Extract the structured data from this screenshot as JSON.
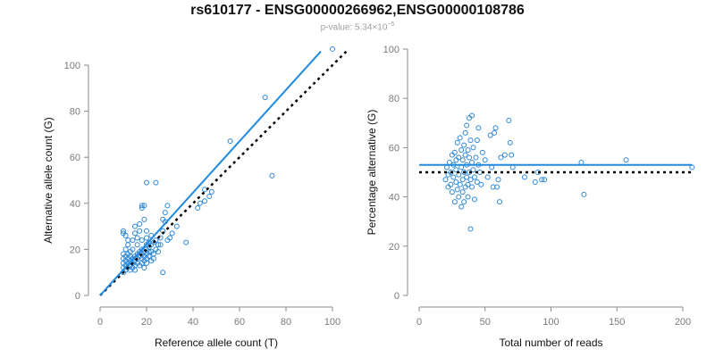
{
  "title": "rs610177 - ENSG00000266962,ENSG00000108786",
  "subtitle": {
    "prefix": "p-value: 5.34×10",
    "exponent": "−5"
  },
  "colors": {
    "points": "#2c87d6",
    "fit_line": "#1f8ae0",
    "reference_line": "#000000",
    "axis": "#8a8a8a",
    "tick_text": "#7a7a7a"
  },
  "chart_data": [
    {
      "type": "scatter",
      "xlabel": "Reference allele count (T)",
      "ylabel": "Alternative allele count (G)",
      "xlim": [
        0,
        100
      ],
      "ylim": [
        0,
        100
      ],
      "xticks": [
        0,
        20,
        40,
        60,
        80,
        100
      ],
      "yticks": [
        0,
        20,
        40,
        60,
        80,
        100
      ],
      "grid": false,
      "fit_line": {
        "x": [
          0,
          95
        ],
        "y": [
          0,
          106
        ]
      },
      "reference_line": {
        "x": [
          0,
          106
        ],
        "y": [
          0,
          106
        ]
      },
      "points": [
        [
          10,
          10
        ],
        [
          10,
          12
        ],
        [
          10,
          14
        ],
        [
          10,
          16
        ],
        [
          10,
          18
        ],
        [
          10,
          27
        ],
        [
          10,
          28
        ],
        [
          11,
          11
        ],
        [
          11,
          13
        ],
        [
          11,
          15
        ],
        [
          11,
          17
        ],
        [
          11,
          20
        ],
        [
          11,
          26
        ],
        [
          12,
          12
        ],
        [
          12,
          14
        ],
        [
          12,
          16
        ],
        [
          12,
          18
        ],
        [
          12,
          22
        ],
        [
          12,
          24
        ],
        [
          13,
          13
        ],
        [
          13,
          15
        ],
        [
          13,
          17
        ],
        [
          13,
          11
        ],
        [
          13,
          19
        ],
        [
          14,
          14
        ],
        [
          14,
          16
        ],
        [
          14,
          12
        ],
        [
          14,
          20
        ],
        [
          14,
          24
        ],
        [
          15,
          15
        ],
        [
          15,
          17
        ],
        [
          15,
          13
        ],
        [
          15,
          11
        ],
        [
          15,
          27
        ],
        [
          15,
          30
        ],
        [
          16,
          16
        ],
        [
          16,
          18
        ],
        [
          16,
          14
        ],
        [
          16,
          22
        ],
        [
          16,
          25
        ],
        [
          17,
          17
        ],
        [
          17,
          13
        ],
        [
          17,
          19
        ],
        [
          17,
          28
        ],
        [
          17,
          31
        ],
        [
          18,
          18
        ],
        [
          18,
          16
        ],
        [
          18,
          14
        ],
        [
          18,
          20
        ],
        [
          18,
          24
        ],
        [
          18,
          38
        ],
        [
          18,
          39
        ],
        [
          19,
          19
        ],
        [
          19,
          17
        ],
        [
          19,
          15
        ],
        [
          19,
          12
        ],
        [
          19,
          33
        ],
        [
          19,
          39
        ],
        [
          20,
          20
        ],
        [
          20,
          22
        ],
        [
          20,
          18
        ],
        [
          20,
          16
        ],
        [
          20,
          14
        ],
        [
          20,
          25
        ],
        [
          20,
          28
        ],
        [
          20,
          49
        ],
        [
          21,
          21
        ],
        [
          21,
          17
        ],
        [
          21,
          23
        ],
        [
          21,
          19
        ],
        [
          22,
          22
        ],
        [
          22,
          19
        ],
        [
          22,
          26
        ],
        [
          22,
          15
        ],
        [
          23,
          23
        ],
        [
          23,
          18
        ],
        [
          23,
          16
        ],
        [
          24,
          20
        ],
        [
          24,
          24
        ],
        [
          24,
          49
        ],
        [
          25,
          22
        ],
        [
          25,
          19
        ],
        [
          26,
          22
        ],
        [
          26,
          25
        ],
        [
          27,
          28
        ],
        [
          27,
          10
        ],
        [
          27,
          33
        ],
        [
          28,
          32
        ],
        [
          28,
          36
        ],
        [
          29,
          39
        ],
        [
          29,
          24
        ],
        [
          30,
          25
        ],
        [
          31,
          27
        ],
        [
          33,
          30
        ],
        [
          37,
          23
        ],
        [
          42,
          38
        ],
        [
          43,
          40
        ],
        [
          45,
          41
        ],
        [
          45,
          46
        ],
        [
          47,
          43
        ],
        [
          48,
          45
        ],
        [
          56,
          67
        ],
        [
          71,
          86
        ],
        [
          74,
          52
        ],
        [
          100,
          107
        ]
      ]
    },
    {
      "type": "scatter",
      "xlabel": "Total number of reads",
      "ylabel": "Percentage alternative (G)",
      "xlim": [
        0,
        200
      ],
      "ylim": [
        0,
        100
      ],
      "xticks": [
        0,
        50,
        100,
        150,
        200
      ],
      "yticks": [
        0,
        20,
        40,
        60,
        80,
        100
      ],
      "grid": false,
      "fit_line": {
        "x": [
          0,
          207
        ],
        "y": [
          53,
          53
        ]
      },
      "reference_line": {
        "x": [
          0,
          207
        ],
        "y": [
          50,
          50
        ]
      },
      "points": [
        [
          20,
          47
        ],
        [
          21,
          52
        ],
        [
          22,
          44
        ],
        [
          22,
          49
        ],
        [
          23,
          54
        ],
        [
          24,
          45
        ],
        [
          24,
          50
        ],
        [
          25,
          57
        ],
        [
          25,
          42
        ],
        [
          26,
          48
        ],
        [
          26,
          53
        ],
        [
          27,
          58
        ],
        [
          27,
          38
        ],
        [
          28,
          46
        ],
        [
          28,
          51
        ],
        [
          28,
          55
        ],
        [
          29,
          62
        ],
        [
          29,
          43
        ],
        [
          30,
          40
        ],
        [
          30,
          49
        ],
        [
          30,
          56
        ],
        [
          31,
          64
        ],
        [
          31,
          45
        ],
        [
          32,
          52
        ],
        [
          32,
          36
        ],
        [
          32,
          59
        ],
        [
          33,
          47
        ],
        [
          33,
          55
        ],
        [
          33,
          42
        ],
        [
          34,
          61
        ],
        [
          34,
          50
        ],
        [
          34,
          38
        ],
        [
          35,
          57
        ],
        [
          35,
          44
        ],
        [
          35,
          66
        ],
        [
          36,
          53
        ],
        [
          36,
          48
        ],
        [
          36,
          69
        ],
        [
          37,
          45
        ],
        [
          37,
          59
        ],
        [
          37,
          40
        ],
        [
          38,
          56
        ],
        [
          38,
          50
        ],
        [
          38,
          72
        ],
        [
          39,
          27
        ],
        [
          39,
          63
        ],
        [
          39,
          47
        ],
        [
          40,
          54
        ],
        [
          40,
          73
        ],
        [
          40,
          44
        ],
        [
          41,
          51
        ],
        [
          41,
          60
        ],
        [
          42,
          48
        ],
        [
          42,
          39
        ],
        [
          43,
          56
        ],
        [
          44,
          63
        ],
        [
          44,
          46
        ],
        [
          45,
          53
        ],
        [
          45,
          68
        ],
        [
          46,
          50
        ],
        [
          47,
          45
        ],
        [
          48,
          58
        ],
        [
          50,
          55
        ],
        [
          52,
          48
        ],
        [
          54,
          65
        ],
        [
          55,
          52
        ],
        [
          56,
          44
        ],
        [
          57,
          66
        ],
        [
          58,
          68
        ],
        [
          59,
          44
        ],
        [
          60,
          47
        ],
        [
          61,
          38
        ],
        [
          62,
          56
        ],
        [
          65,
          57
        ],
        [
          68,
          71
        ],
        [
          69,
          62
        ],
        [
          70,
          57
        ],
        [
          71,
          52
        ],
        [
          80,
          48
        ],
        [
          88,
          46
        ],
        [
          90,
          50
        ],
        [
          93,
          47
        ],
        [
          95,
          47
        ],
        [
          123,
          54
        ],
        [
          125,
          41
        ],
        [
          157,
          55
        ],
        [
          207,
          52
        ]
      ]
    }
  ]
}
